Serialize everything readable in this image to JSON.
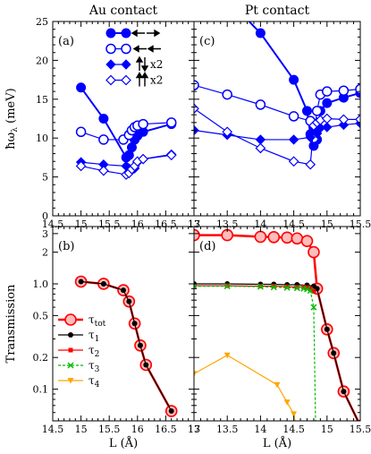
{
  "chart_data": [
    {
      "id": "a",
      "type": "line",
      "panel_label": "(a)",
      "title": "Au contact",
      "ylabel": "ħω",
      "ylabel_sub": "λ",
      "ylabel_unit": " (meV)",
      "xlim": [
        14.5,
        17
      ],
      "ylim": [
        0,
        25
      ],
      "xticks": [
        14.5,
        15,
        15.5,
        16,
        16.5,
        17
      ],
      "xticklabels": [
        "14.5",
        "15",
        "15.5",
        "16",
        "16.5",
        "17"
      ],
      "yticks": [
        0,
        5,
        10,
        15,
        20,
        25
      ],
      "yticklabels": [
        "0",
        "5",
        "10",
        "15",
        "20",
        "25"
      ],
      "legend": {
        "position": "top-right",
        "entries": [
          {
            "marker": "circle-filled",
            "symbol": "long-arrows",
            "text": ""
          },
          {
            "marker": "circle-open",
            "symbol": "same-left-arrows",
            "text": ""
          },
          {
            "marker": "diamond-filled",
            "symbol": "up-down-arrows",
            "text": "x2"
          },
          {
            "marker": "diamond-open",
            "symbol": "up-up-arrows",
            "text": "x2"
          }
        ]
      },
      "series": [
        {
          "marker": "circle-filled",
          "x": [
            15.0,
            15.4,
            15.8,
            15.85,
            15.9,
            15.95,
            16.0,
            16.1,
            16.6
          ],
          "y": [
            16.5,
            12.5,
            7.5,
            7.8,
            8.8,
            9.8,
            10.3,
            10.8,
            11.8
          ]
        },
        {
          "marker": "circle-open",
          "x": [
            15.0,
            15.4,
            15.75,
            15.85,
            15.9,
            15.95,
            16.0,
            16.1,
            16.6
          ],
          "y": [
            10.8,
            9.8,
            9.8,
            10.4,
            11.0,
            11.4,
            11.6,
            11.8,
            12.0
          ]
        },
        {
          "marker": "diamond-filled",
          "x": [
            15.0,
            15.4,
            15.8,
            15.85,
            15.9,
            15.95,
            16.0,
            16.1,
            16.6
          ],
          "y": [
            6.9,
            6.6,
            6.4,
            6.1,
            5.9,
            6.1,
            6.9,
            7.3,
            7.9
          ]
        },
        {
          "marker": "diamond-open",
          "x": [
            15.0,
            15.4,
            15.8,
            15.85,
            15.9,
            15.95,
            16.0,
            16.1,
            16.6
          ],
          "y": [
            6.4,
            5.8,
            5.3,
            5.5,
            6.0,
            6.4,
            7.0,
            7.3,
            7.8
          ]
        }
      ]
    },
    {
      "id": "c",
      "type": "line",
      "panel_label": "(c)",
      "title": "Pt contact",
      "xlim": [
        13,
        15.5
      ],
      "ylim": [
        0,
        25
      ],
      "xticks": [
        13,
        13.5,
        14,
        14.5,
        15,
        15.5
      ],
      "xticklabels": [
        "13",
        "13.5",
        "14",
        "14.5",
        "15",
        "15.5"
      ],
      "yticks": [
        0,
        5,
        10,
        15,
        20,
        25
      ],
      "series": [
        {
          "marker": "circle-filled",
          "x": [
            13.6,
            14.0,
            14.5,
            14.7,
            14.75,
            14.8,
            14.85,
            14.9,
            15.0,
            15.25,
            15.5
          ],
          "y": [
            27.0,
            23.5,
            17.5,
            13.5,
            10.5,
            9.0,
            9.8,
            13.5,
            14.5,
            15.2,
            15.8
          ]
        },
        {
          "marker": "circle-open",
          "x": [
            13.0,
            13.5,
            14.0,
            14.5,
            14.75,
            14.8,
            14.85,
            14.9,
            15.0,
            15.25,
            15.5
          ],
          "y": [
            16.8,
            15.6,
            14.3,
            12.8,
            12.2,
            10.0,
            13.5,
            15.6,
            16.0,
            16.1,
            16.3
          ]
        },
        {
          "marker": "diamond-filled",
          "x": [
            13.0,
            13.5,
            14.0,
            14.5,
            14.75,
            14.8,
            14.85,
            14.9,
            15.0,
            15.25,
            15.5
          ],
          "y": [
            11.0,
            10.4,
            9.8,
            9.8,
            10.1,
            11.4,
            10.6,
            11.3,
            11.4,
            11.7,
            11.9
          ]
        },
        {
          "marker": "diamond-open",
          "x": [
            13.0,
            13.5,
            14.0,
            14.5,
            14.75,
            14.8,
            14.85,
            14.9,
            15.0,
            15.25,
            15.5
          ],
          "y": [
            13.8,
            10.8,
            8.7,
            7.0,
            6.6,
            11.6,
            12.0,
            12.3,
            12.5,
            12.4,
            12.4
          ]
        }
      ]
    },
    {
      "id": "b",
      "type": "line",
      "panel_label": "(b)",
      "xlabel": "L (Å)",
      "ylabel": "Transmission",
      "yscale": "log",
      "xlim": [
        14.5,
        17
      ],
      "ylim": [
        0.05,
        3.5
      ],
      "xticks": [
        14.5,
        15,
        15.5,
        16,
        16.5,
        17
      ],
      "xticklabels": [
        "14.5",
        "15",
        "15.5",
        "16",
        "16.5",
        "17"
      ],
      "yticks": [
        0.1,
        0.2,
        0.5,
        1,
        2,
        3
      ],
      "yticklabels": [
        "0.1",
        "0.2",
        "0.5",
        "1.0",
        "2",
        "3"
      ],
      "legend": {
        "position": "center-left",
        "entries": [
          {
            "marker": "circle-open-red",
            "label": "τ",
            "sub": "tot"
          },
          {
            "marker": "circle-black",
            "label": "τ",
            "sub": "1"
          },
          {
            "marker": "square-red",
            "label": "τ",
            "sub": "2"
          },
          {
            "marker": "x-green",
            "label": "τ",
            "sub": "3"
          },
          {
            "marker": "tri-orange",
            "label": "τ",
            "sub": "4"
          }
        ]
      },
      "series": [
        {
          "marker": "circle-open-red",
          "x": [
            15.0,
            15.4,
            15.75,
            15.85,
            15.95,
            16.05,
            16.15,
            16.6
          ],
          "y": [
            1.05,
            1.0,
            0.87,
            0.68,
            0.42,
            0.26,
            0.17,
            0.062
          ]
        },
        {
          "marker": "circle-black",
          "x": [
            15.0,
            15.4,
            15.75,
            15.85,
            15.95,
            16.05,
            16.15,
            16.6
          ],
          "y": [
            1.05,
            1.0,
            0.87,
            0.68,
            0.42,
            0.26,
            0.17,
            0.062
          ]
        }
      ]
    },
    {
      "id": "d",
      "type": "line",
      "panel_label": "(d)",
      "xlabel": "L (Å)",
      "yscale": "log",
      "xlim": [
        13,
        15.5
      ],
      "ylim": [
        0.05,
        3.5
      ],
      "xticks": [
        13,
        13.5,
        14,
        14.5,
        15,
        15.5
      ],
      "xticklabels": [
        "13",
        "13.5",
        "14",
        "14.5",
        "15",
        "15.5"
      ],
      "yticks": [
        0.1,
        0.2,
        0.5,
        1,
        2,
        3
      ],
      "series": [
        {
          "marker": "circle-open-red",
          "x": [
            13.0,
            13.5,
            14.0,
            14.2,
            14.4,
            14.55,
            14.7,
            14.8,
            14.85,
            15.0,
            15.1,
            15.25,
            15.5
          ],
          "y": [
            2.9,
            2.9,
            2.8,
            2.78,
            2.75,
            2.7,
            2.55,
            2.0,
            0.9,
            0.37,
            0.22,
            0.095,
            0.045
          ]
        },
        {
          "marker": "circle-black",
          "x": [
            13.0,
            13.5,
            14.0,
            14.2,
            14.4,
            14.55,
            14.7,
            14.8,
            14.85,
            15.0,
            15.1,
            15.25,
            15.5
          ],
          "y": [
            1.0,
            1.0,
            0.99,
            0.99,
            0.98,
            0.98,
            0.97,
            0.95,
            0.9,
            0.37,
            0.22,
            0.095,
            0.045
          ]
        },
        {
          "marker": "square-red",
          "x": [
            13.0,
            13.5,
            14.0,
            14.2,
            14.4,
            14.55,
            14.65,
            14.7,
            14.75,
            14.8
          ],
          "y": [
            0.96,
            0.96,
            0.95,
            0.95,
            0.94,
            0.93,
            0.93,
            0.92,
            0.9,
            0.85
          ]
        },
        {
          "marker": "x-green",
          "x": [
            13.0,
            13.5,
            14.0,
            14.2,
            14.4,
            14.55,
            14.65,
            14.7,
            14.75,
            14.8,
            14.83
          ],
          "y": [
            0.95,
            0.95,
            0.94,
            0.93,
            0.92,
            0.91,
            0.9,
            0.89,
            0.86,
            0.6,
            0.04
          ]
        },
        {
          "marker": "tri-orange",
          "x": [
            13.0,
            13.5,
            14.25,
            14.4,
            14.5,
            14.55
          ],
          "y": [
            0.14,
            0.21,
            0.11,
            0.075,
            0.058,
            0.04
          ]
        }
      ]
    }
  ]
}
